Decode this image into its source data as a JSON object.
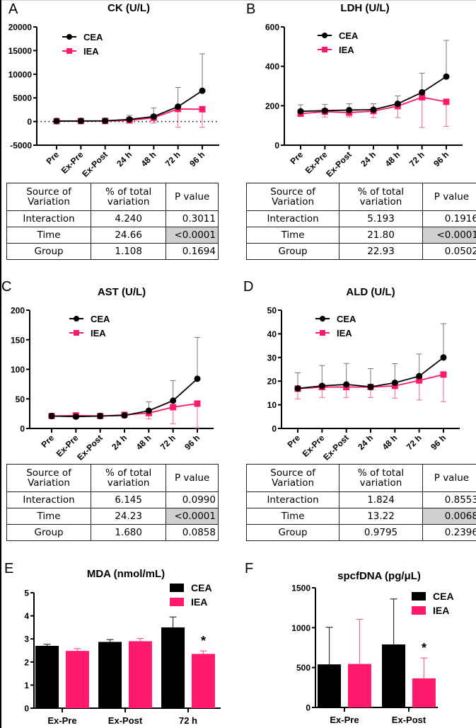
{
  "colors": {
    "cea": "#000000",
    "iea": "#ff1a6e",
    "cea_err": "#777777",
    "iea_err": "#f06496",
    "highlight": "#d0d0d0"
  },
  "legend": {
    "cea": "CEA",
    "iea": "IEA"
  },
  "table_headers": {
    "source": [
      "Source of",
      "Variation"
    ],
    "percent": [
      "% of total",
      "variation"
    ],
    "p": "P value"
  },
  "chart_data": [
    {
      "panel": "A",
      "type": "line",
      "title": "CK (U/L)",
      "categories": [
        "Pre",
        "Ex-Pre",
        "Ex-Post",
        "24 h",
        "48 h",
        "72 h",
        "96 h"
      ],
      "ylim": [
        -5000,
        20000
      ],
      "yticks": [
        -5000,
        0,
        5000,
        10000,
        15000,
        20000
      ],
      "zero_line": "dotted",
      "series": [
        {
          "name": "CEA",
          "marker": "circle",
          "values": [
            100,
            120,
            150,
            450,
            1050,
            3150,
            6500
          ],
          "err_upper": [
            200,
            200,
            250,
            1300,
            2900,
            7200,
            14300
          ]
        },
        {
          "name": "IEA",
          "marker": "square",
          "values": [
            80,
            100,
            120,
            250,
            800,
            2650,
            2600
          ],
          "err_lower": [
            0,
            0,
            0,
            -100,
            -300,
            -1200,
            -1200
          ]
        }
      ],
      "table": [
        {
          "source": "Interaction",
          "percent": "4.240",
          "p": "0.3011",
          "highlight": false
        },
        {
          "source": "Time",
          "percent": "24.66",
          "p": "<0.0001",
          "highlight": true
        },
        {
          "source": "Group",
          "percent": "1.108",
          "p": "0.1694",
          "highlight": false
        }
      ]
    },
    {
      "panel": "B",
      "type": "line",
      "title": "LDH (U/L)",
      "categories": [
        "Pre",
        "Ex-Pre",
        "Ex-Post",
        "24 h",
        "48 h",
        "72 h",
        "96 h"
      ],
      "ylim": [
        0,
        600
      ],
      "yticks": [
        0,
        200,
        400,
        600
      ],
      "series": [
        {
          "name": "CEA",
          "marker": "circle",
          "values": [
            172,
            175,
            178,
            180,
            210,
            268,
            348
          ],
          "err_upper": [
            205,
            207,
            210,
            210,
            250,
            365,
            532
          ]
        },
        {
          "name": "IEA",
          "marker": "square",
          "values": [
            160,
            170,
            165,
            173,
            198,
            243,
            220
          ],
          "err_lower": [
            147,
            143,
            143,
            140,
            140,
            90,
            95
          ]
        }
      ],
      "table": [
        {
          "source": "Interaction",
          "percent": "5.193",
          "p": "0.1916",
          "highlight": false
        },
        {
          "source": "Time",
          "percent": "21.80",
          "p": "<0.0001",
          "highlight": true
        },
        {
          "source": "Group",
          "percent": "22.93",
          "p": "0.0502",
          "highlight": false
        }
      ]
    },
    {
      "panel": "C",
      "type": "line",
      "title": "AST (U/L)",
      "categories": [
        "Pre",
        "Ex-Pre",
        "Ex-Post",
        "24 h",
        "48 h",
        "72 h",
        "96 h"
      ],
      "ylim": [
        0,
        200
      ],
      "yticks": [
        0,
        50,
        100,
        150,
        200
      ],
      "series": [
        {
          "name": "CEA",
          "marker": "circle",
          "values": [
            21,
            20,
            21,
            22,
            30,
            47,
            84
          ],
          "err_upper": [
            24,
            23,
            23,
            25,
            45,
            81,
            154
          ]
        },
        {
          "name": "IEA",
          "marker": "square",
          "values": [
            21,
            22,
            21,
            23,
            26,
            36,
            42
          ],
          "err_lower": [
            19,
            20,
            19,
            20,
            16,
            8,
            1
          ]
        }
      ],
      "table": [
        {
          "source": "Interaction",
          "percent": "6.145",
          "p": "0.0990",
          "highlight": false
        },
        {
          "source": "Time",
          "percent": "24.23",
          "p": "<0.0001",
          "highlight": true
        },
        {
          "source": "Group",
          "percent": "1.680",
          "p": "0.0858",
          "highlight": false
        }
      ]
    },
    {
      "panel": "D",
      "type": "line",
      "title": "ALD (U/L)",
      "categories": [
        "Pre",
        "Ex-Pre",
        "Ex-Post",
        "24 h",
        "48 h",
        "72 h",
        "96 h"
      ],
      "ylim": [
        0,
        50
      ],
      "yticks": [
        0,
        10,
        20,
        30,
        40,
        50
      ],
      "series": [
        {
          "name": "CEA",
          "marker": "circle",
          "values": [
            16.9,
            18.0,
            18.6,
            17.6,
            19.3,
            22.1,
            30.0
          ],
          "err_upper": [
            23.5,
            26.6,
            27.5,
            25.3,
            27.4,
            31.5,
            44.3
          ]
        },
        {
          "name": "IEA",
          "marker": "square",
          "values": [
            16.8,
            17.5,
            17.5,
            17.5,
            18.0,
            20.3,
            22.8
          ],
          "err_lower": [
            12.5,
            13.1,
            13.1,
            13.1,
            12.8,
            12.0,
            11.3
          ]
        }
      ],
      "table": [
        {
          "source": "Interaction",
          "percent": "1.824",
          "p": "0.8553",
          "highlight": false
        },
        {
          "source": "Time",
          "percent": "13.22",
          "p": "0.0068",
          "highlight": true
        },
        {
          "source": "Group",
          "percent": "0.9795",
          "p": "0.2396",
          "highlight": false
        }
      ]
    },
    {
      "panel": "E",
      "type": "bar",
      "title": "MDA (nmol/mL)",
      "categories": [
        "Ex-Pre",
        "Ex-Post",
        "72 h"
      ],
      "ylim": [
        0,
        5
      ],
      "yticks": [
        0,
        1,
        2,
        3,
        4,
        5
      ],
      "series": [
        {
          "name": "CEA",
          "values": [
            2.7,
            2.87,
            3.5
          ],
          "err_upper": [
            2.77,
            2.97,
            3.95
          ]
        },
        {
          "name": "IEA",
          "values": [
            2.48,
            2.9,
            2.35
          ],
          "err_upper": [
            2.58,
            3.02,
            2.48
          ]
        }
      ],
      "annotations": [
        {
          "category": "72 h",
          "series": "IEA",
          "text": "*"
        }
      ]
    },
    {
      "panel": "F",
      "type": "bar",
      "title": "spcfDNA (pg/μL)",
      "categories": [
        "Ex-Pre",
        "Ex-Post"
      ],
      "ylim": [
        0,
        1500
      ],
      "yticks": [
        0,
        500,
        1000,
        1500
      ],
      "series": [
        {
          "name": "CEA",
          "values": [
            540,
            790
          ],
          "err_upper": [
            1005,
            1360
          ]
        },
        {
          "name": "IEA",
          "values": [
            545,
            365
          ],
          "err_upper": [
            1105,
            620
          ]
        }
      ],
      "annotations": [
        {
          "category": "Ex-Post",
          "series": "IEA",
          "text": "*"
        }
      ]
    }
  ]
}
